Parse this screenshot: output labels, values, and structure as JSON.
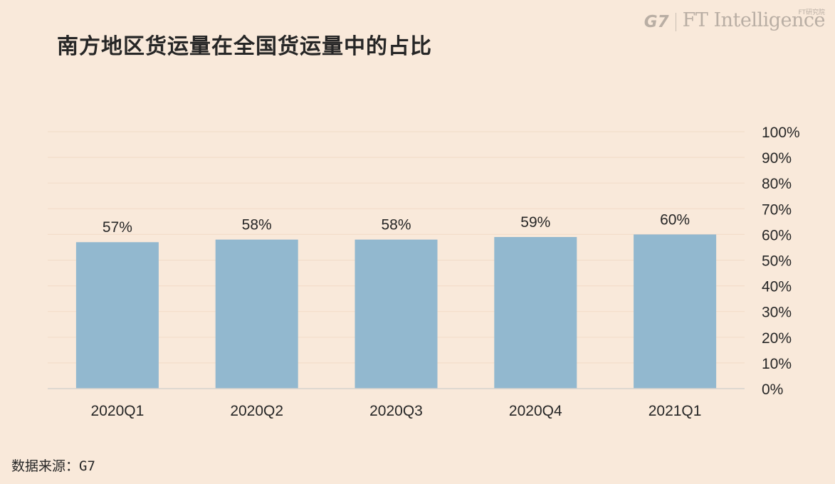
{
  "title": "南方地区货运量在全国货运量中的占比",
  "logo": {
    "g7": "G7",
    "ft": "FT Intelligence",
    "sub": "FT研究院"
  },
  "source": "数据来源：G7",
  "chart_data": {
    "type": "bar",
    "title": "南方地区货运量在全国货运量中的占比",
    "categories": [
      "2020Q1",
      "2020Q2",
      "2020Q3",
      "2020Q4",
      "2021Q1"
    ],
    "values": [
      57,
      58,
      58,
      59,
      60
    ],
    "data_labels": [
      "57%",
      "58%",
      "58%",
      "59%",
      "60%"
    ],
    "ylim": [
      0,
      100
    ],
    "yticks": [
      "0%",
      "10%",
      "20%",
      "30%",
      "40%",
      "50%",
      "60%",
      "70%",
      "80%",
      "90%",
      "100%"
    ],
    "y_axis_side": "right",
    "grid": true,
    "bar_color": "#92b8cf",
    "xlabel": "",
    "ylabel": ""
  }
}
